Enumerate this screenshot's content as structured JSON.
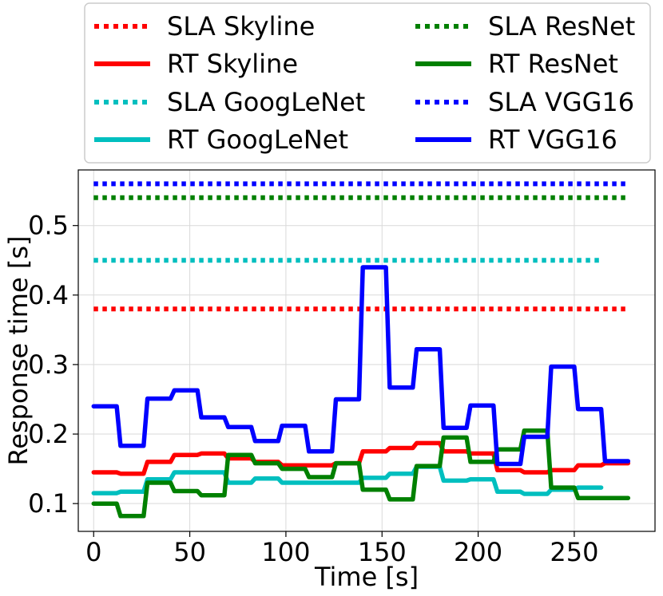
{
  "chart_data": {
    "type": "line",
    "title": "",
    "xlabel": "Time [s]",
    "ylabel": "Response time [s]",
    "xlim": [
      -8,
      292
    ],
    "ylim": [
      0.06,
      0.58
    ],
    "xticks": [
      0,
      50,
      100,
      150,
      200,
      250
    ],
    "yticks": [
      0.1,
      0.2,
      0.3,
      0.4,
      0.5
    ],
    "xtick_labels": [
      "0",
      "50",
      "100",
      "150",
      "200",
      "250"
    ],
    "ytick_labels": [
      "0.1",
      "0.2",
      "0.3",
      "0.4",
      "0.5"
    ],
    "grid": true,
    "legend": {
      "placement": "top, above plot, 2 columns",
      "entries": [
        {
          "label": "SLA Skyline",
          "color": "#ff0000",
          "style": "dotted"
        },
        {
          "label": "SLA ResNet",
          "color": "#008000",
          "style": "dotted"
        },
        {
          "label": "RT Skyline",
          "color": "#ff0000",
          "style": "solid"
        },
        {
          "label": "RT ResNet",
          "color": "#008000",
          "style": "solid"
        },
        {
          "label": "SLA GoogLeNet",
          "color": "#00bfbf",
          "style": "dotted"
        },
        {
          "label": "SLA VGG16",
          "color": "#0000ff",
          "style": "dotted"
        },
        {
          "label": "RT GoogLeNet",
          "color": "#00bfbf",
          "style": "solid"
        },
        {
          "label": "RT VGG16",
          "color": "#0000ff",
          "style": "solid"
        }
      ]
    },
    "series": [
      {
        "name": "SLA Skyline",
        "color": "#ff0000",
        "style": "dotted",
        "x": [
          0,
          278
        ],
        "y": [
          0.38,
          0.38
        ]
      },
      {
        "name": "SLA ResNet",
        "color": "#008000",
        "style": "dotted",
        "x": [
          0,
          278
        ],
        "y": [
          0.54,
          0.54
        ]
      },
      {
        "name": "SLA GoogLeNet",
        "color": "#00bfbf",
        "style": "dotted",
        "x": [
          0,
          265
        ],
        "y": [
          0.45,
          0.45
        ]
      },
      {
        "name": "SLA VGG16",
        "color": "#0000ff",
        "style": "dotted",
        "x": [
          0,
          278
        ],
        "y": [
          0.56,
          0.56
        ]
      },
      {
        "name": "RT Skyline",
        "color": "#ff0000",
        "style": "solid",
        "x": [
          0,
          12,
          14,
          26,
          28,
          40,
          42,
          54,
          56,
          68,
          70,
          82,
          84,
          96,
          98,
          110,
          112,
          124,
          126,
          138,
          140,
          152,
          154,
          166,
          168,
          180,
          182,
          194,
          196,
          208,
          210,
          222,
          224,
          236,
          238,
          250,
          252,
          264,
          266,
          278
        ],
        "y": [
          0.145,
          0.145,
          0.143,
          0.143,
          0.16,
          0.16,
          0.17,
          0.17,
          0.172,
          0.172,
          0.165,
          0.165,
          0.16,
          0.16,
          0.155,
          0.155,
          0.155,
          0.155,
          0.158,
          0.158,
          0.175,
          0.175,
          0.18,
          0.18,
          0.187,
          0.187,
          0.175,
          0.175,
          0.172,
          0.172,
          0.148,
          0.148,
          0.145,
          0.145,
          0.148,
          0.148,
          0.155,
          0.155,
          0.158,
          0.158
        ]
      },
      {
        "name": "RT GoogLeNet",
        "color": "#00bfbf",
        "style": "solid",
        "x": [
          0,
          12,
          14,
          26,
          28,
          40,
          42,
          54,
          56,
          68,
          70,
          82,
          84,
          96,
          98,
          110,
          112,
          124,
          126,
          138,
          140,
          152,
          154,
          166,
          168,
          180,
          182,
          194,
          196,
          208,
          210,
          222,
          224,
          236,
          238,
          250,
          252,
          264
        ],
        "y": [
          0.115,
          0.115,
          0.117,
          0.117,
          0.135,
          0.135,
          0.145,
          0.145,
          0.145,
          0.145,
          0.13,
          0.13,
          0.136,
          0.136,
          0.13,
          0.13,
          0.13,
          0.13,
          0.13,
          0.13,
          0.137,
          0.137,
          0.143,
          0.143,
          0.153,
          0.153,
          0.133,
          0.133,
          0.135,
          0.135,
          0.117,
          0.117,
          0.114,
          0.114,
          0.12,
          0.12,
          0.123,
          0.123
        ]
      },
      {
        "name": "RT ResNet",
        "color": "#008000",
        "style": "solid",
        "x": [
          0,
          12,
          14,
          26,
          28,
          40,
          42,
          54,
          56,
          68,
          70,
          82,
          84,
          96,
          98,
          110,
          112,
          124,
          126,
          138,
          140,
          152,
          154,
          166,
          168,
          180,
          182,
          194,
          196,
          208,
          210,
          222,
          224,
          236,
          238,
          250,
          252,
          264,
          266,
          278
        ],
        "y": [
          0.1,
          0.1,
          0.082,
          0.082,
          0.13,
          0.13,
          0.118,
          0.118,
          0.112,
          0.112,
          0.17,
          0.17,
          0.158,
          0.158,
          0.15,
          0.15,
          0.138,
          0.138,
          0.158,
          0.158,
          0.12,
          0.12,
          0.106,
          0.106,
          0.154,
          0.154,
          0.195,
          0.195,
          0.16,
          0.16,
          0.178,
          0.178,
          0.205,
          0.205,
          0.123,
          0.123,
          0.108,
          0.108,
          0.108,
          0.108
        ]
      },
      {
        "name": "RT VGG16",
        "color": "#0000ff",
        "style": "solid",
        "x": [
          0,
          12,
          14,
          26,
          28,
          40,
          42,
          54,
          56,
          68,
          70,
          82,
          84,
          96,
          98,
          110,
          112,
          124,
          126,
          138,
          140,
          152,
          154,
          166,
          168,
          180,
          182,
          194,
          196,
          208,
          210,
          222,
          224,
          236,
          238,
          250,
          252,
          264,
          266,
          278
        ],
        "y": [
          0.24,
          0.24,
          0.183,
          0.183,
          0.251,
          0.251,
          0.263,
          0.263,
          0.224,
          0.224,
          0.21,
          0.21,
          0.19,
          0.19,
          0.212,
          0.212,
          0.175,
          0.175,
          0.25,
          0.25,
          0.44,
          0.44,
          0.267,
          0.267,
          0.322,
          0.322,
          0.209,
          0.209,
          0.241,
          0.241,
          0.157,
          0.157,
          0.196,
          0.196,
          0.297,
          0.297,
          0.236,
          0.236,
          0.161,
          0.161
        ]
      }
    ]
  }
}
